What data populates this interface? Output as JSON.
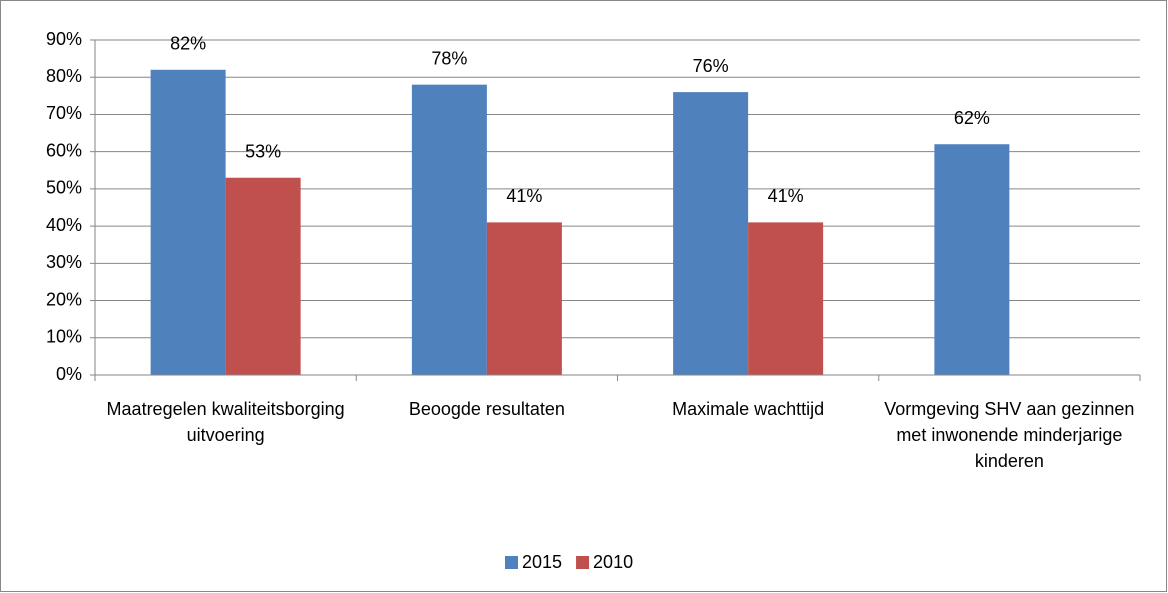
{
  "chart_data": {
    "type": "bar",
    "categories": [
      "Maatregelen kwaliteitsborging uitvoering",
      "Beoogde resultaten",
      "Maximale wachttijd",
      "Vormgeving SHV aan gezinnen met inwonende minderjarige kinderen"
    ],
    "series": [
      {
        "name": "2015",
        "color": "#4f81bd",
        "values": [
          82,
          78,
          76,
          62
        ],
        "value_labels": [
          "82%",
          "78%",
          "76%",
          "62%"
        ]
      },
      {
        "name": "2010",
        "color": "#c0504d",
        "values": [
          53,
          41,
          41,
          null
        ],
        "value_labels": [
          "53%",
          "41%",
          "41%",
          null
        ]
      }
    ],
    "ylim": [
      0,
      90
    ],
    "yticks": [
      {
        "value": 0,
        "label": "0%"
      },
      {
        "value": 10,
        "label": "10%"
      },
      {
        "value": 20,
        "label": "20%"
      },
      {
        "value": 30,
        "label": "30%"
      },
      {
        "value": 40,
        "label": "40%"
      },
      {
        "value": 50,
        "label": "50%"
      },
      {
        "value": 60,
        "label": "60%"
      },
      {
        "value": 70,
        "label": "70%"
      },
      {
        "value": 80,
        "label": "80%"
      },
      {
        "value": 90,
        "label": "90%"
      }
    ],
    "grid": true,
    "legend": "bottom"
  }
}
